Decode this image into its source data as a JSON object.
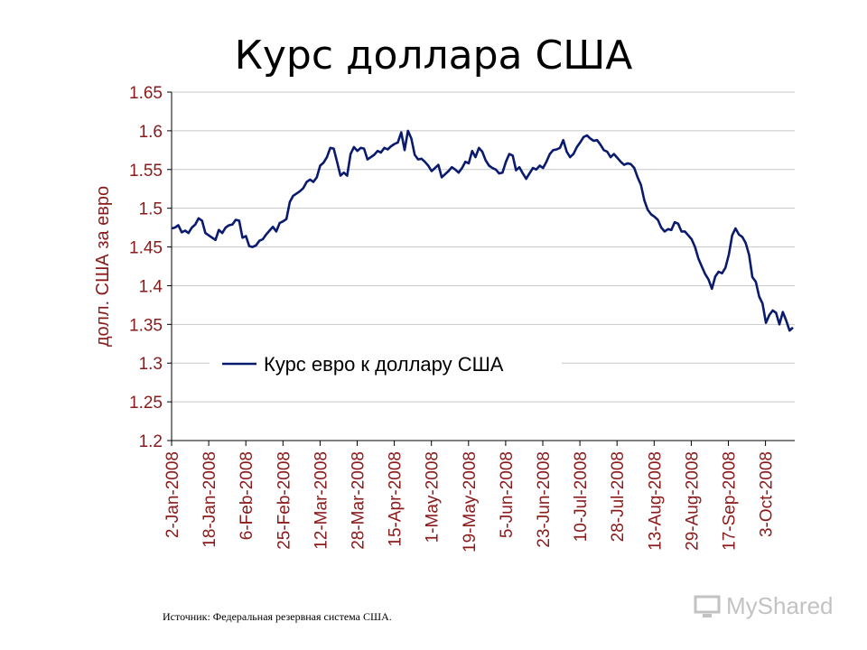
{
  "title": "Курс доллара США",
  "source": "Источник: Федеральная резервная система США.",
  "watermark": "MyShared",
  "chart_data": {
    "type": "line",
    "title": "Курс доллара США",
    "ylabel": "долл. США за евро",
    "ylim": [
      1.2,
      1.65
    ],
    "yticks": [
      "1.2",
      "1.25",
      "1.3",
      "1.35",
      "1.4",
      "1.45",
      "1.5",
      "1.55",
      "1.6",
      "1.65"
    ],
    "xticks": [
      "2-Jan-2008",
      "18-Jan-2008",
      "6-Feb-2008",
      "25-Feb-2008",
      "12-Mar-2008",
      "28-Mar-2008",
      "15-Apr-2008",
      "1-May-2008",
      "19-May-2008",
      "5-Jun-2008",
      "23-Jun-2008",
      "10-Jul-2008",
      "28-Jul-2008",
      "13-Aug-2008",
      "29-Aug-2008",
      "17-Sep-2008",
      "3-Oct-2008"
    ],
    "grid": "horizontal",
    "legend": "inside-lower-center",
    "line_color": "#0a1a6e",
    "axis_label_color": "#8b1a1a",
    "series": [
      {
        "name": "Курс евро к доллару США",
        "values": [
          1.474,
          1.475,
          1.478,
          1.469,
          1.471,
          1.468,
          1.475,
          1.479,
          1.487,
          1.484,
          1.468,
          1.465,
          1.462,
          1.459,
          1.472,
          1.468,
          1.475,
          1.478,
          1.479,
          1.485,
          1.484,
          1.462,
          1.464,
          1.451,
          1.45,
          1.452,
          1.458,
          1.46,
          1.466,
          1.471,
          1.476,
          1.47,
          1.481,
          1.483,
          1.486,
          1.508,
          1.516,
          1.519,
          1.522,
          1.526,
          1.534,
          1.537,
          1.534,
          1.54,
          1.555,
          1.559,
          1.566,
          1.578,
          1.577,
          1.56,
          1.542,
          1.546,
          1.542,
          1.57,
          1.579,
          1.574,
          1.578,
          1.577,
          1.563,
          1.566,
          1.569,
          1.574,
          1.572,
          1.578,
          1.576,
          1.58,
          1.583,
          1.585,
          1.598,
          1.575,
          1.6,
          1.59,
          1.569,
          1.563,
          1.564,
          1.56,
          1.555,
          1.548,
          1.552,
          1.556,
          1.54,
          1.544,
          1.548,
          1.553,
          1.55,
          1.546,
          1.552,
          1.56,
          1.558,
          1.574,
          1.566,
          1.578,
          1.573,
          1.562,
          1.555,
          1.552,
          1.55,
          1.545,
          1.546,
          1.56,
          1.57,
          1.568,
          1.549,
          1.553,
          1.545,
          1.538,
          1.545,
          1.552,
          1.55,
          1.555,
          1.552,
          1.56,
          1.57,
          1.575,
          1.576,
          1.578,
          1.588,
          1.573,
          1.566,
          1.57,
          1.579,
          1.585,
          1.592,
          1.594,
          1.59,
          1.587,
          1.588,
          1.582,
          1.575,
          1.573,
          1.566,
          1.57,
          1.565,
          1.56,
          1.556,
          1.558,
          1.557,
          1.552,
          1.54,
          1.53,
          1.51,
          1.498,
          1.492,
          1.489,
          1.485,
          1.475,
          1.47,
          1.473,
          1.472,
          1.482,
          1.48,
          1.47,
          1.47,
          1.465,
          1.46,
          1.45,
          1.435,
          1.425,
          1.415,
          1.408,
          1.396,
          1.412,
          1.418,
          1.416,
          1.423,
          1.44,
          1.465,
          1.474,
          1.466,
          1.463,
          1.455,
          1.44,
          1.411,
          1.405,
          1.386,
          1.377,
          1.352,
          1.362,
          1.368,
          1.365,
          1.35,
          1.366,
          1.355,
          1.342,
          1.346
        ]
      }
    ]
  }
}
